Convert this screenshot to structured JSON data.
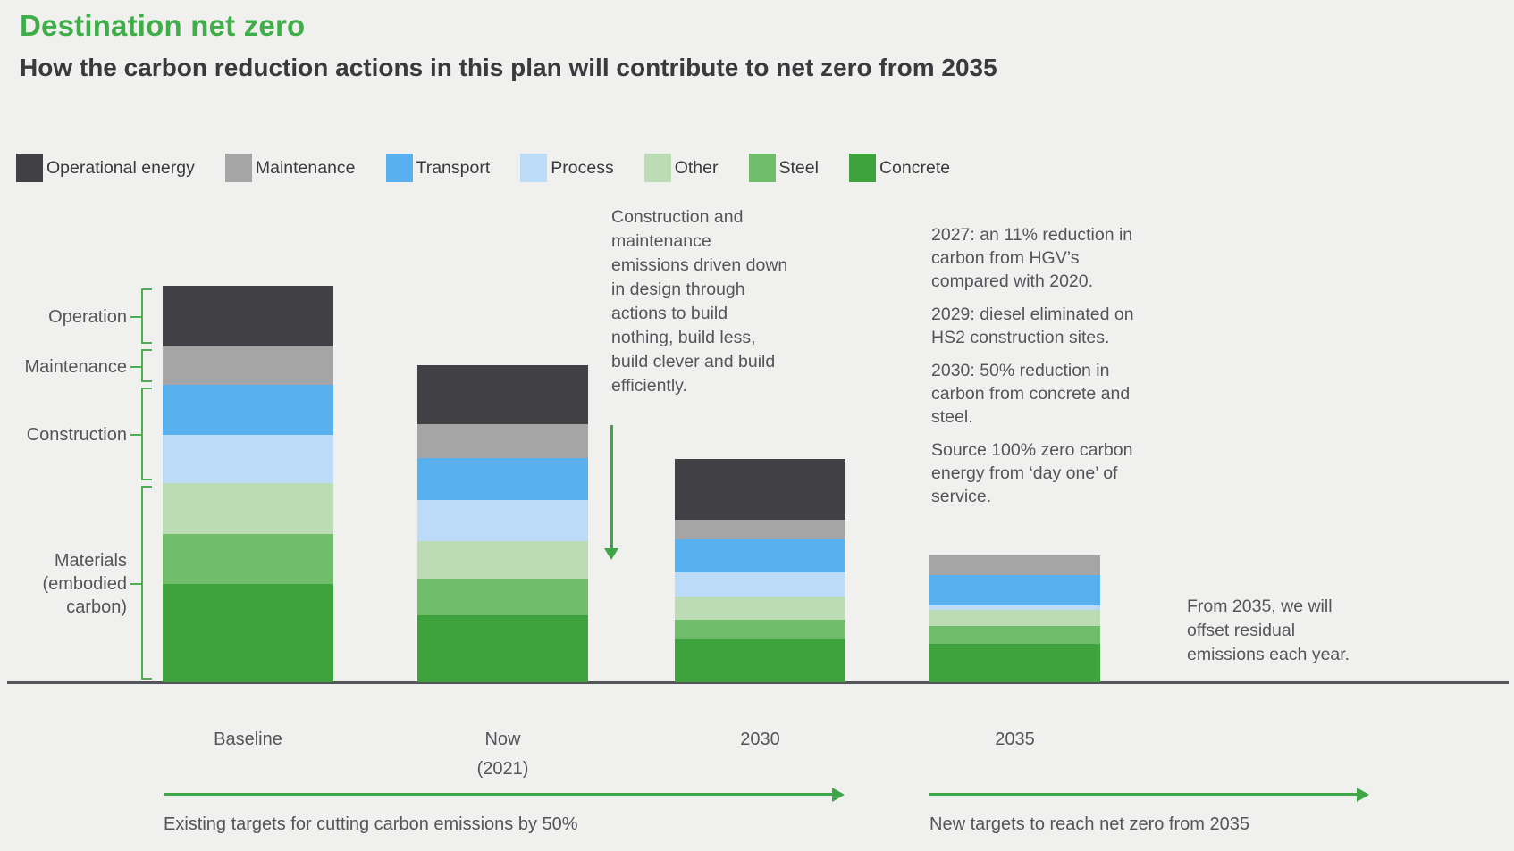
{
  "header": {
    "title": "Destination net zero",
    "subtitle": "How the carbon reduction actions in this plan will contribute to net zero from 2035"
  },
  "chart_data": {
    "type": "bar",
    "subtype": "stacked-vertical",
    "title": "Destination net zero",
    "note": "No numeric value axis is shown; values are proportional stack heights read from the image (pixel units).",
    "categories": [
      "Baseline",
      "Now\n(2021)",
      "2030",
      "2035"
    ],
    "series": [
      {
        "name": "Operational energy",
        "color": "#414045",
        "values": [
          68,
          66,
          68,
          0
        ]
      },
      {
        "name": "Maintenance",
        "color": "#a5a5a6",
        "values": [
          43,
          38,
          22,
          22
        ]
      },
      {
        "name": "Transport",
        "color": "#58b0ee",
        "values": [
          56,
          47,
          37,
          34
        ]
      },
      {
        "name": "Process",
        "color": "#bbdbf7",
        "values": [
          54,
          46,
          27,
          5
        ]
      },
      {
        "name": "Other",
        "color": "#bbdcb5",
        "values": [
          57,
          42,
          26,
          18
        ]
      },
      {
        "name": "Steel",
        "color": "#6fbc6b",
        "values": [
          56,
          41,
          22,
          20
        ]
      },
      {
        "name": "Concrete",
        "color": "#3ea33c",
        "values": [
          110,
          75,
          48,
          43
        ]
      }
    ],
    "stack_order_top_to_bottom": [
      "Operational energy",
      "Maintenance",
      "Transport",
      "Process",
      "Other",
      "Steel",
      "Concrete"
    ],
    "row_groups": [
      {
        "label": "Operation",
        "series": [
          "Operational energy"
        ]
      },
      {
        "label": "Maintenance",
        "series": [
          "Maintenance"
        ]
      },
      {
        "label": "Construction",
        "series": [
          "Transport",
          "Process"
        ]
      },
      {
        "label": "Materials (embodied carbon)",
        "series": [
          "Other",
          "Steel",
          "Concrete"
        ]
      }
    ],
    "legend_position": "top"
  },
  "annotations": {
    "construction_note": "Construction and maintenance emissions driven down in design through actions to build nothing, build less, build clever and build efficiently.",
    "milestones": [
      "2027: an 11% reduction in carbon from HGV’s compared with 2020.",
      "2029: diesel eliminated on HS2 construction sites.",
      "2030: 50% reduction in carbon from concrete and steel.",
      "Source 100% zero carbon energy from ‘day one’ of service."
    ],
    "offset_note": "From 2035, we will offset residual emissions each year.",
    "bottom_left": "Existing targets for cutting carbon emissions by 50%",
    "bottom_right": "New targets to reach net zero from 2035"
  },
  "theme": {
    "background": "#f0f0ee",
    "title_green": "#3fae49",
    "text_dark": "#3a3a3e",
    "text_grey": "#54555b",
    "bracket_green": "#4ead55",
    "arrow_green": "#3fa648",
    "axis_line": "#55565a"
  }
}
